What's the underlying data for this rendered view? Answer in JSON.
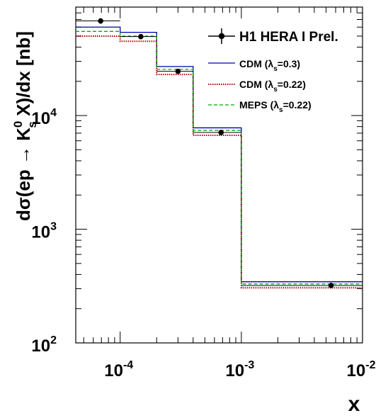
{
  "chart_data": {
    "type": "step",
    "xlabel": "x",
    "ylabel": {
      "prefix": "dσ(ep → K",
      "sup": "0",
      "sub": "s",
      "suffix": " X)/dx [nb]"
    },
    "xscale": "log",
    "yscale": "log",
    "xlim": [
      4.3e-05,
      0.01
    ],
    "ylim": [
      100,
      90000
    ],
    "x_ticks": [
      {
        "value": 0.0001,
        "base": "10",
        "exp": "-4"
      },
      {
        "value": 0.001,
        "base": "10",
        "exp": "-3"
      },
      {
        "value": 0.01,
        "base": "10",
        "exp": "-2"
      }
    ],
    "y_ticks": [
      {
        "value": 100,
        "base": "10",
        "exp": "2"
      },
      {
        "value": 1000,
        "base": "10",
        "exp": "3"
      },
      {
        "value": 10000,
        "base": "10",
        "exp": "4"
      }
    ],
    "bin_edges": [
      4.3e-05,
      0.0001,
      0.0002,
      0.0004,
      0.001,
      0.01
    ],
    "series": [
      {
        "name": "CDM (λs=0.3)",
        "legend": {
          "prefix": "CDM (λ",
          "sub": "s",
          "suffix": "=0.3)"
        },
        "color": "#0000aa",
        "style": "solid",
        "values": [
          60000,
          54000,
          27000,
          7800,
          345
        ]
      },
      {
        "name": "CDM (λs=0.22)",
        "legend": {
          "prefix": "CDM (λ",
          "sub": "s",
          "suffix": "=0.22)"
        },
        "color": "#aa0000",
        "style": "dotted",
        "values": [
          50000,
          45000,
          23000,
          6700,
          305
        ]
      },
      {
        "name": "MEPS (λs=0.22)",
        "legend": {
          "prefix": "MEPS (λ",
          "sub": "s",
          "suffix": "=0.22)"
        },
        "color": "#00aa00",
        "style": "dashed",
        "values": [
          55000,
          50000,
          25500,
          7400,
          330
        ]
      }
    ],
    "data_points": {
      "name": "H1 HERA I Prel.",
      "points": [
        {
          "x": 6.9e-05,
          "y": 68000,
          "xerr": [
            4.3e-05,
            0.0001
          ],
          "yerr": [
            64000,
            72000
          ]
        },
        {
          "x": 0.000148,
          "y": 49500,
          "xerr": [
            0.0001,
            0.0002
          ],
          "yerr": [
            47500,
            51500
          ]
        },
        {
          "x": 0.0003,
          "y": 24500,
          "xerr": [
            0.0002,
            0.0004
          ],
          "yerr": [
            23500,
            25500
          ]
        },
        {
          "x": 0.00068,
          "y": 7100,
          "xerr": [
            0.0004,
            0.001
          ],
          "yerr": [
            6800,
            7400
          ]
        },
        {
          "x": 0.0055,
          "y": 320,
          "xerr": [
            0.001,
            0.01
          ],
          "yerr": [
            305,
            335
          ]
        }
      ]
    },
    "legend_placement": "top-right",
    "grid": false
  }
}
